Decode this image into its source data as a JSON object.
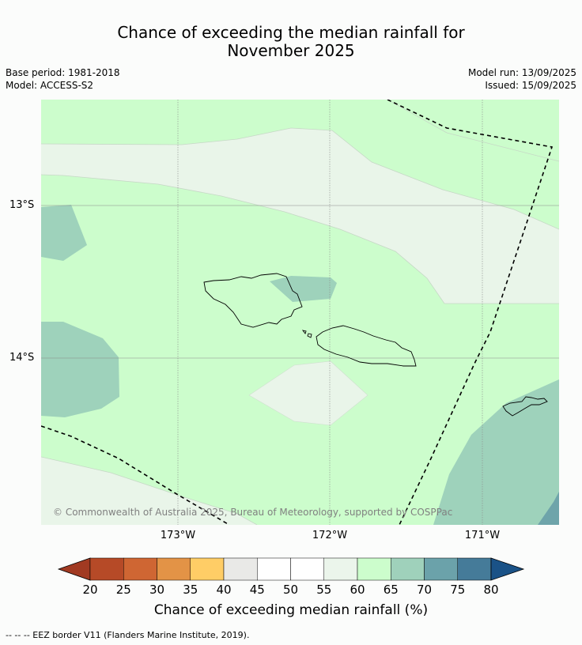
{
  "title": {
    "line1": "Chance of exceeding the median rainfall for",
    "line2": "November 2025"
  },
  "meta": {
    "base_period": "Base period: 1981-2018",
    "model": "Model: ACCESS-S2",
    "model_run": "Model run: 13/09/2025",
    "issued": "Issued: 15/09/2025"
  },
  "map": {
    "lat_labels": [
      "13°S",
      "14°S"
    ],
    "lon_labels": [
      "173°W",
      "172°W",
      "171°W"
    ],
    "copyright": "© Commonwealth of Australia 2025, Bureau of Meteorology, supported by COSPPac",
    "colors": {
      "c55_60": "#e9f5e9",
      "c60_65": "#ccfdcc",
      "c65_70": "#9ed2bb",
      "c70_75": "#6ea4aa",
      "land_outline": "#000000",
      "eez_border": "#000000",
      "gridline": "#888888"
    }
  },
  "colorbar": {
    "ticks": [
      "20",
      "25",
      "30",
      "35",
      "40",
      "45",
      "50",
      "55",
      "60",
      "65",
      "70",
      "75",
      "80"
    ],
    "colors": [
      "#a13a22",
      "#b64a27",
      "#cf6633",
      "#e39346",
      "#ffcd66",
      "#e9e9e7",
      "#ffffff",
      "#ffffff",
      "#ebf5eb",
      "#ccfdcc",
      "#9fd1bb",
      "#6ba2aa",
      "#457b99",
      "#1a5287"
    ],
    "label": "Chance of exceeding median rainfall (%)"
  },
  "footnote": "--  --  -- EEZ border V11 (Flanders Marine Institute, 2019)."
}
